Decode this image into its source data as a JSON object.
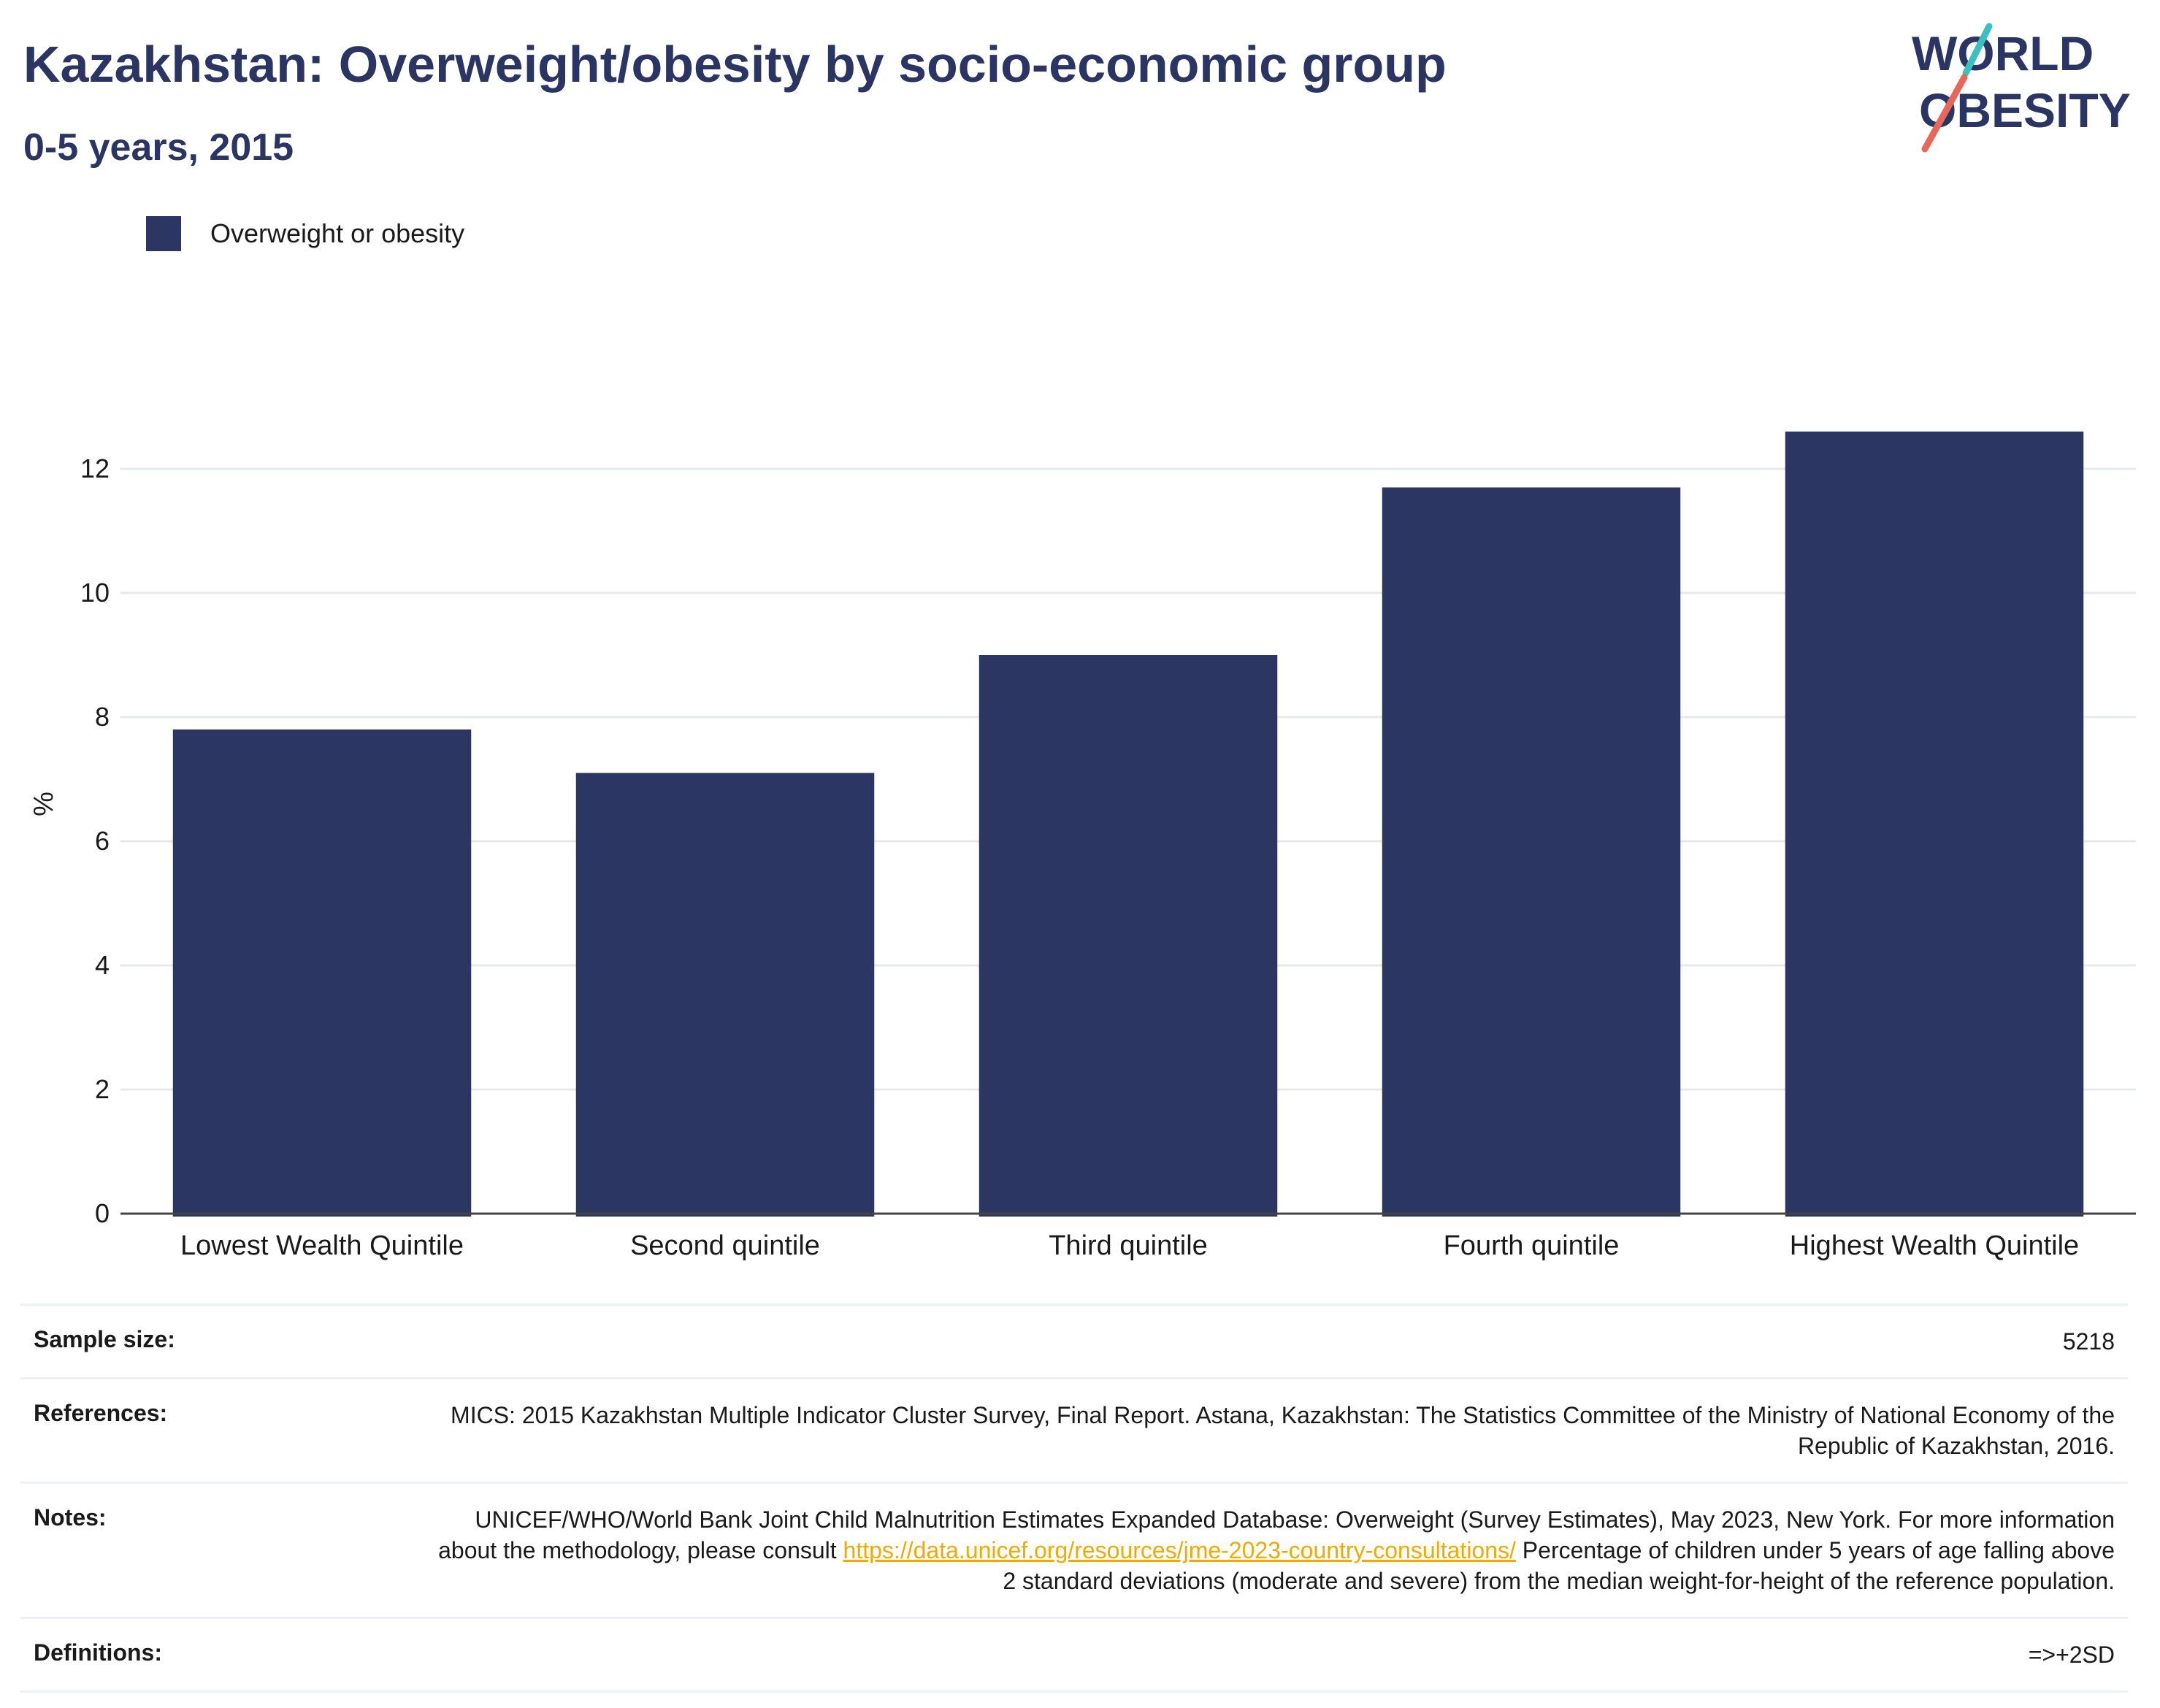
{
  "header": {
    "title": "Kazakhstan: Overweight/obesity by socio-economic group",
    "subtitle": "0-5 years, 2015"
  },
  "logo": {
    "line1": "WORLD",
    "line2": "OBESITY"
  },
  "colors": {
    "bar": "#2b3663",
    "title": "#2b3563",
    "link": "#f2a900",
    "logo_teal": "#3bbfbf",
    "logo_coral": "#e8665a"
  },
  "chart_data": {
    "type": "bar",
    "categories": [
      "Lowest Wealth Quintile",
      "Second quintile",
      "Third quintile",
      "Fourth quintile",
      "Highest Wealth Quintile"
    ],
    "series": [
      {
        "name": "Overweight or obesity",
        "values": [
          7.8,
          7.1,
          9.0,
          11.7,
          12.6
        ]
      }
    ],
    "ylabel": "%",
    "yticks": [
      0,
      2,
      4,
      6,
      8,
      10,
      12
    ],
    "ylim": [
      0,
      13.2
    ],
    "grid": true,
    "legend": "top-left"
  },
  "meta": {
    "sample_size_label": "Sample size:",
    "sample_size_value": "5218",
    "references_label": "References:",
    "references_value": "MICS: 2015 Kazakhstan Multiple Indicator Cluster Survey, Final Report. Astana, Kazakhstan: The Statistics Committee of the Ministry of National Economy of the Republic of Kazakhstan, 2016.",
    "notes_label": "Notes:",
    "notes_text_1": "UNICEF/WHO/World Bank Joint Child Malnutrition Estimates Expanded Database: Overweight (Survey Estimates), May 2023, New York. For more information about the methodology, please consult ",
    "notes_link": "https://data.unicef.org/resources/jme-2023-country-consultations/",
    "notes_text_2": " Percentage of children under 5 years of age falling above 2 standard deviations (moderate and severe) from the median weight-for-height of the reference population.",
    "definitions_label": "Definitions:",
    "definitions_value": "=>+2SD"
  }
}
